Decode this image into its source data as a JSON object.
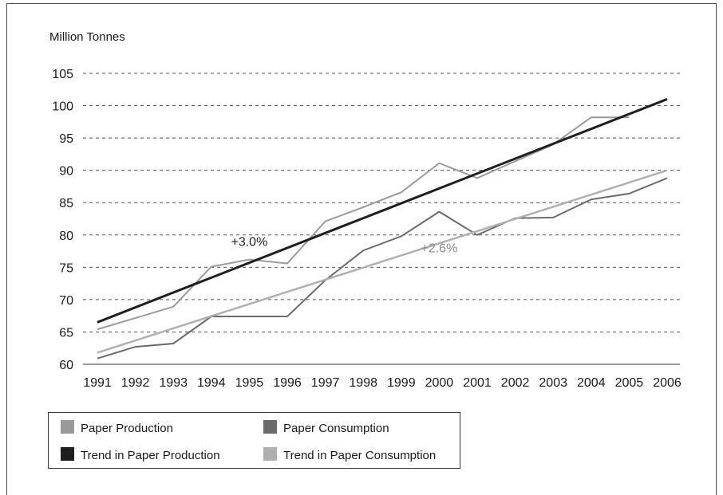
{
  "chart_data": {
    "type": "line",
    "title": "",
    "ylabel": "Million Tonnes",
    "xlabel": "",
    "x": [
      "1991",
      "1992",
      "1993",
      "1994",
      "1995",
      "1996",
      "1997",
      "1998",
      "1999",
      "2000",
      "2001",
      "2002",
      "2003",
      "2004",
      "2005",
      "2006"
    ],
    "ylim": [
      60,
      105
    ],
    "yticks": [
      60,
      65,
      70,
      75,
      80,
      85,
      90,
      95,
      100,
      105
    ],
    "grid": "dashed horizontal",
    "series": [
      {
        "name": "Paper Production",
        "style": "solid-thin",
        "color": "#9a9a9a",
        "values": [
          65.4,
          null,
          68.9,
          75.1,
          76.2,
          75.6,
          82.1,
          84.3,
          86.6,
          91.1,
          88.8,
          null,
          94.0,
          98.2,
          98.2,
          null
        ]
      },
      {
        "name": "Paper Consumption",
        "style": "solid-thin",
        "color": "#6b6b6b",
        "values": [
          60.9,
          62.7,
          63.2,
          67.4,
          67.4,
          67.4,
          73.0,
          77.6,
          79.8,
          83.6,
          80.0,
          82.6,
          82.7,
          85.5,
          86.4,
          88.8
        ]
      },
      {
        "name": "Trend in Paper Production",
        "style": "solid-thick",
        "color": "#1e1e1e",
        "values": [
          66.5,
          null,
          null,
          null,
          null,
          null,
          null,
          null,
          null,
          null,
          null,
          null,
          null,
          null,
          null,
          101.0
        ]
      },
      {
        "name": "Trend in Paper Consumption",
        "style": "solid-medium",
        "color": "#b0b0b0",
        "values": [
          61.8,
          null,
          null,
          null,
          null,
          null,
          null,
          null,
          null,
          null,
          null,
          null,
          null,
          null,
          null,
          90.0
        ]
      }
    ],
    "annotations": [
      {
        "text": "+3.0%",
        "x": "1995",
        "y": 78.3,
        "color": "#1e1e1e"
      },
      {
        "text": "+2.6%",
        "x": "2000",
        "y": 77.3,
        "color": "#8a8a8a"
      }
    ],
    "legend": {
      "placement": "bottom-left",
      "entries": [
        {
          "label": "Paper Production",
          "color": "#9a9a9a"
        },
        {
          "label": "Paper Consumption",
          "color": "#6b6b6b"
        },
        {
          "label": "Trend in Paper Production",
          "color": "#1e1e1e"
        },
        {
          "label": "Trend in Paper Consumption",
          "color": "#b0b0b0"
        }
      ]
    }
  }
}
